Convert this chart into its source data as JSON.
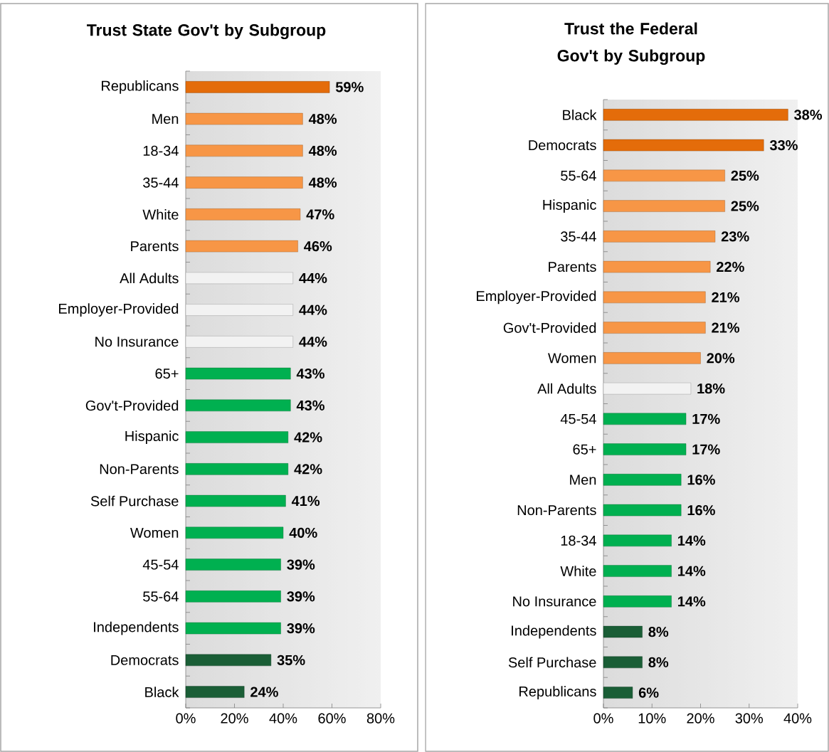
{
  "chart_data": [
    {
      "type": "bar",
      "orientation": "horizontal",
      "title": "Trust State Gov't by Subgroup",
      "categories": [
        "Republicans",
        "Men",
        "18-34",
        "35-44",
        "White",
        "Parents",
        "All Adults",
        "Employer-Provided",
        "No Insurance",
        "65+",
        "Gov't-Provided",
        "Hispanic",
        "Non-Parents",
        "Self Purchase",
        "Women",
        "45-54",
        "55-64",
        "Independents",
        "Democrats",
        "Black"
      ],
      "values": [
        59,
        48,
        48,
        48,
        47,
        46,
        44,
        44,
        44,
        43,
        43,
        42,
        42,
        41,
        40,
        39,
        39,
        39,
        35,
        24
      ],
      "value_labels": [
        "59%",
        "48%",
        "48%",
        "48%",
        "47%",
        "46%",
        "44%",
        "44%",
        "44%",
        "43%",
        "43%",
        "42%",
        "42%",
        "41%",
        "40%",
        "39%",
        "39%",
        "39%",
        "35%",
        "24%"
      ],
      "colors": [
        "#e46c0a",
        "#f79646",
        "#f79646",
        "#f79646",
        "#f79646",
        "#f79646",
        "#f2f2f2",
        "#f2f2f2",
        "#f2f2f2",
        "#00b050",
        "#00b050",
        "#00b050",
        "#00b050",
        "#00b050",
        "#00b050",
        "#00b050",
        "#00b050",
        "#00b050",
        "#1a5e36",
        "#1a5e36"
      ],
      "xlim": [
        0,
        80
      ],
      "xticks": [
        {
          "value": 0,
          "label": "0%"
        },
        {
          "value": 20,
          "label": "20%"
        },
        {
          "value": 40,
          "label": "40%"
        },
        {
          "value": 60,
          "label": "60%"
        },
        {
          "value": 80,
          "label": "80%"
        }
      ]
    },
    {
      "type": "bar",
      "orientation": "horizontal",
      "title": "Trust the Federal Gov't by Subgroup",
      "categories": [
        "Black",
        "Democrats",
        "55-64",
        "Hispanic",
        "35-44",
        "Parents",
        "Employer-Provided",
        "Gov't-Provided",
        "Women",
        "All Adults",
        "45-54",
        "65+",
        "Men",
        "Non-Parents",
        "18-34",
        "White",
        "No Insurance",
        "Independents",
        "Self Purchase",
        "Republicans"
      ],
      "values": [
        38,
        33,
        25,
        25,
        23,
        22,
        21,
        21,
        20,
        18,
        17,
        17,
        16,
        16,
        14,
        14,
        14,
        8,
        8,
        6
      ],
      "value_labels": [
        "38%",
        "33%",
        "25%",
        "25%",
        "23%",
        "22%",
        "21%",
        "21%",
        "20%",
        "18%",
        "17%",
        "17%",
        "16%",
        "16%",
        "14%",
        "14%",
        "14%",
        "8%",
        "8%",
        "6%"
      ],
      "colors": [
        "#e46c0a",
        "#e46c0a",
        "#f79646",
        "#f79646",
        "#f79646",
        "#f79646",
        "#f79646",
        "#f79646",
        "#f79646",
        "#f2f2f2",
        "#00b050",
        "#00b050",
        "#00b050",
        "#00b050",
        "#00b050",
        "#00b050",
        "#00b050",
        "#1a5e36",
        "#1a5e36",
        "#1a5e36"
      ],
      "xlim": [
        0,
        40
      ],
      "xticks": [
        {
          "value": 0,
          "label": "0%"
        },
        {
          "value": 10,
          "label": "10%"
        },
        {
          "value": 20,
          "label": "20%"
        },
        {
          "value": 30,
          "label": "30%"
        },
        {
          "value": 40,
          "label": "40%"
        }
      ]
    }
  ]
}
